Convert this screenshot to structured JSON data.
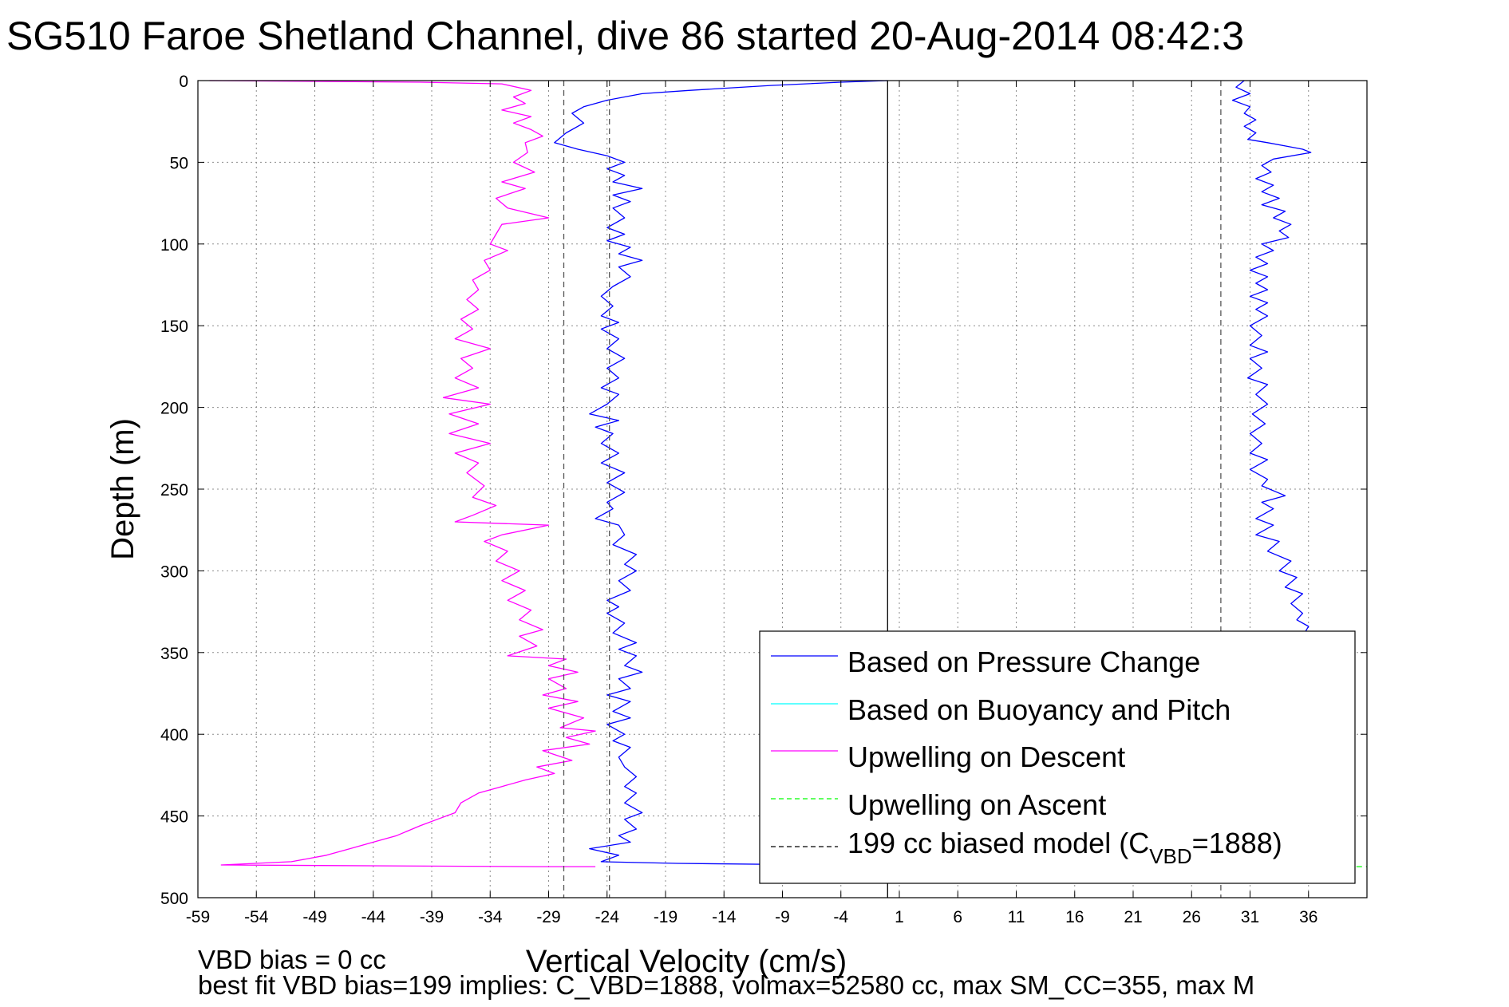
{
  "chart_data": {
    "type": "line",
    "title": "SG510 Faroe Shetland Channel, dive 86 started 20-Aug-2014 08:42:3",
    "xlabel": "Vertical Velocity (cm/s)",
    "ylabel": "Depth (m)",
    "xlim": [
      -59,
      41
    ],
    "ylim": [
      500,
      0
    ],
    "y_reversed": true,
    "grid": true,
    "x_ticks": [
      -59,
      -54,
      -49,
      -44,
      -39,
      -34,
      -29,
      -24,
      -19,
      -14,
      -9,
      -4,
      1,
      6,
      11,
      16,
      21,
      26,
      31,
      36
    ],
    "y_ticks": [
      0,
      50,
      100,
      150,
      200,
      250,
      300,
      350,
      400,
      450,
      500
    ],
    "legend_position": "bottom-right",
    "legend": [
      {
        "label": "Based on Pressure Change",
        "color": "#0000ff",
        "style": "solid"
      },
      {
        "label": "Based on Buoyancy and Pitch",
        "color": "#00ffff",
        "style": "solid"
      },
      {
        "label": "Upwelling on Descent",
        "color": "#ff00ff",
        "style": "solid"
      },
      {
        "label": "Upwelling on Ascent",
        "color": "#00ff00",
        "style": "dashed"
      },
      {
        "label_main": "199 cc biased model (C",
        "label_sub": "VBD",
        "label_tail": "=1888)",
        "color": "#000000",
        "style": "dashed"
      }
    ],
    "series": [
      {
        "color": "#ff00ff",
        "style": "solid",
        "points": [
          [
            -58,
            0
          ],
          [
            -40,
            1
          ],
          [
            -33,
            2
          ],
          [
            -30.5,
            6
          ],
          [
            -32,
            10
          ],
          [
            -31,
            14
          ],
          [
            -33,
            18
          ],
          [
            -30.5,
            22
          ],
          [
            -32,
            26
          ],
          [
            -30.5,
            30
          ],
          [
            -29.5,
            34
          ],
          [
            -31,
            38
          ],
          [
            -30.8,
            44
          ],
          [
            -32,
            50
          ],
          [
            -30.2,
            56
          ],
          [
            -33,
            62
          ],
          [
            -31,
            66
          ],
          [
            -33.5,
            72
          ],
          [
            -32.5,
            78
          ],
          [
            -29,
            84
          ],
          [
            -33,
            88
          ],
          [
            -33.5,
            94
          ],
          [
            -34,
            100
          ],
          [
            -32.5,
            104
          ],
          [
            -34.5,
            110
          ],
          [
            -34,
            116
          ],
          [
            -35.5,
            122
          ],
          [
            -35,
            128
          ],
          [
            -36,
            134
          ],
          [
            -35,
            140
          ],
          [
            -36.5,
            146
          ],
          [
            -35.5,
            152
          ],
          [
            -37,
            158
          ],
          [
            -34,
            164
          ],
          [
            -36.5,
            170
          ],
          [
            -35.5,
            176
          ],
          [
            -37,
            182
          ],
          [
            -35,
            188
          ],
          [
            -38,
            194
          ],
          [
            -34,
            198
          ],
          [
            -37.5,
            204
          ],
          [
            -35,
            210
          ],
          [
            -37.5,
            216
          ],
          [
            -34,
            222
          ],
          [
            -37,
            228
          ],
          [
            -35,
            234
          ],
          [
            -36,
            240
          ],
          [
            -34.5,
            248
          ],
          [
            -35.5,
            255
          ],
          [
            -33.5,
            260
          ],
          [
            -35.5,
            266
          ],
          [
            -37,
            270
          ],
          [
            -29,
            272
          ],
          [
            -33,
            278
          ],
          [
            -34.5,
            282
          ],
          [
            -32.5,
            288
          ],
          [
            -33.5,
            294
          ],
          [
            -31.5,
            300
          ],
          [
            -33,
            306
          ],
          [
            -31,
            312
          ],
          [
            -32.5,
            318
          ],
          [
            -30.5,
            324
          ],
          [
            -31.5,
            330
          ],
          [
            -29.5,
            336
          ],
          [
            -31.5,
            340
          ],
          [
            -30,
            346
          ],
          [
            -32.5,
            352
          ],
          [
            -27.5,
            354
          ],
          [
            -29,
            358
          ],
          [
            -26.5,
            362
          ],
          [
            -29,
            366
          ],
          [
            -27.5,
            372
          ],
          [
            -29.5,
            376
          ],
          [
            -26.5,
            380
          ],
          [
            -29,
            384
          ],
          [
            -26,
            390
          ],
          [
            -28,
            396
          ],
          [
            -25,
            398
          ],
          [
            -27.5,
            402
          ],
          [
            -25.5,
            406
          ],
          [
            -29.5,
            410
          ],
          [
            -27,
            416
          ],
          [
            -30,
            420
          ],
          [
            -28.5,
            424
          ],
          [
            -31,
            428
          ],
          [
            -33,
            432
          ],
          [
            -35,
            436
          ],
          [
            -36.5,
            442
          ],
          [
            -37,
            448
          ],
          [
            -38.5,
            452
          ],
          [
            -40,
            456
          ],
          [
            -42,
            462
          ],
          [
            -44,
            466
          ],
          [
            -46,
            470
          ],
          [
            -48,
            474
          ],
          [
            -51,
            478
          ],
          [
            -57,
            480
          ],
          [
            -30,
            481
          ],
          [
            -25,
            481
          ]
        ]
      },
      {
        "color": "#0000ff",
        "style": "solid",
        "points": [
          [
            0,
            0
          ],
          [
            -4,
            1
          ],
          [
            -10,
            3
          ],
          [
            -17,
            6
          ],
          [
            -21,
            8
          ],
          [
            -24,
            12
          ],
          [
            -26,
            16
          ],
          [
            -27,
            20
          ],
          [
            -26,
            26
          ],
          [
            -27.5,
            32
          ],
          [
            -28.5,
            38
          ],
          [
            -26.5,
            42
          ],
          [
            -24,
            46
          ],
          [
            -22.5,
            50
          ],
          [
            -24,
            54
          ],
          [
            -22.5,
            58
          ],
          [
            -23.5,
            62
          ],
          [
            -21,
            66
          ],
          [
            -23.5,
            70
          ],
          [
            -22,
            74
          ],
          [
            -23.5,
            78
          ],
          [
            -22.5,
            84
          ],
          [
            -24,
            90
          ],
          [
            -22.5,
            94
          ],
          [
            -24,
            98
          ],
          [
            -22,
            102
          ],
          [
            -23,
            106
          ],
          [
            -21,
            110
          ],
          [
            -23,
            114
          ],
          [
            -22,
            120
          ],
          [
            -23.5,
            126
          ],
          [
            -24.5,
            132
          ],
          [
            -23.5,
            138
          ],
          [
            -24.5,
            144
          ],
          [
            -23,
            148
          ],
          [
            -24.5,
            152
          ],
          [
            -23,
            158
          ],
          [
            -24,
            164
          ],
          [
            -22.5,
            170
          ],
          [
            -24,
            176
          ],
          [
            -23,
            182
          ],
          [
            -24.5,
            188
          ],
          [
            -23,
            192
          ],
          [
            -24,
            198
          ],
          [
            -25.5,
            204
          ],
          [
            -23,
            208
          ],
          [
            -25,
            212
          ],
          [
            -23.5,
            216
          ],
          [
            -24.5,
            222
          ],
          [
            -23,
            228
          ],
          [
            -24.5,
            234
          ],
          [
            -22.5,
            240
          ],
          [
            -24,
            246
          ],
          [
            -22.5,
            252
          ],
          [
            -24,
            258
          ],
          [
            -23.5,
            262
          ],
          [
            -25,
            268
          ],
          [
            -23,
            272
          ],
          [
            -22.5,
            278
          ],
          [
            -23.5,
            284
          ],
          [
            -21.5,
            290
          ],
          [
            -22.5,
            296
          ],
          [
            -21.5,
            300
          ],
          [
            -23,
            306
          ],
          [
            -22,
            312
          ],
          [
            -24,
            318
          ],
          [
            -23,
            322
          ],
          [
            -24,
            326
          ],
          [
            -22.5,
            332
          ],
          [
            -23.5,
            338
          ],
          [
            -21.5,
            344
          ],
          [
            -23,
            348
          ],
          [
            -21.5,
            352
          ],
          [
            -22.5,
            358
          ],
          [
            -21,
            362
          ],
          [
            -23,
            366
          ],
          [
            -22,
            372
          ],
          [
            -24,
            376
          ],
          [
            -22,
            380
          ],
          [
            -23.5,
            386
          ],
          [
            -22,
            390
          ],
          [
            -24,
            394
          ],
          [
            -22.5,
            400
          ],
          [
            -23.5,
            404
          ],
          [
            -22,
            408
          ],
          [
            -23,
            414
          ],
          [
            -22.5,
            420
          ],
          [
            -21.5,
            426
          ],
          [
            -22.5,
            432
          ],
          [
            -21.5,
            436
          ],
          [
            -22.5,
            442
          ],
          [
            -21,
            448
          ],
          [
            -22.5,
            452
          ],
          [
            -21.5,
            458
          ],
          [
            -23,
            462
          ],
          [
            -22,
            466
          ],
          [
            -25.5,
            470
          ],
          [
            -23,
            474
          ],
          [
            -24.5,
            478
          ],
          [
            -18,
            479
          ],
          [
            -5,
            480
          ],
          [
            20,
            481
          ],
          [
            30,
            481
          ]
        ]
      },
      {
        "color": "#0000ff",
        "style": "solid",
        "points": [
          [
            30.5,
            0
          ],
          [
            29.8,
            4
          ],
          [
            31,
            8
          ],
          [
            29.5,
            12
          ],
          [
            31,
            16
          ],
          [
            30.5,
            20
          ],
          [
            31.5,
            24
          ],
          [
            30.5,
            28
          ],
          [
            31.5,
            32
          ],
          [
            30.8,
            36
          ],
          [
            32.5,
            38
          ],
          [
            34,
            40
          ],
          [
            35.5,
            42
          ],
          [
            36.2,
            44
          ],
          [
            33,
            48
          ],
          [
            32,
            52
          ],
          [
            32.8,
            56
          ],
          [
            31.5,
            60
          ],
          [
            33,
            64
          ],
          [
            32,
            68
          ],
          [
            33.5,
            72
          ],
          [
            32,
            76
          ],
          [
            34,
            80
          ],
          [
            33,
            84
          ],
          [
            34.5,
            88
          ],
          [
            33.5,
            92
          ],
          [
            34.3,
            96
          ],
          [
            32,
            100
          ],
          [
            33,
            104
          ],
          [
            31.5,
            108
          ],
          [
            32.5,
            112
          ],
          [
            31,
            116
          ],
          [
            32.5,
            120
          ],
          [
            31.5,
            124
          ],
          [
            32.5,
            128
          ],
          [
            31,
            132
          ],
          [
            32.5,
            136
          ],
          [
            31.5,
            140
          ],
          [
            32.5,
            144
          ],
          [
            31,
            150
          ],
          [
            32,
            156
          ],
          [
            31,
            162
          ],
          [
            32.5,
            166
          ],
          [
            31,
            170
          ],
          [
            32,
            176
          ],
          [
            30.8,
            182
          ],
          [
            32.5,
            186
          ],
          [
            31.5,
            192
          ],
          [
            32.5,
            198
          ],
          [
            31.2,
            204
          ],
          [
            32.3,
            210
          ],
          [
            31,
            216
          ],
          [
            32,
            222
          ],
          [
            31,
            228
          ],
          [
            32.5,
            232
          ],
          [
            31,
            238
          ],
          [
            32.5,
            244
          ],
          [
            32,
            248
          ],
          [
            34,
            254
          ],
          [
            32,
            258
          ],
          [
            33,
            262
          ],
          [
            31.5,
            268
          ],
          [
            33,
            272
          ],
          [
            31.5,
            278
          ],
          [
            33.5,
            282
          ],
          [
            32.5,
            288
          ],
          [
            34.5,
            294
          ],
          [
            33.5,
            300
          ],
          [
            35,
            304
          ],
          [
            34,
            310
          ],
          [
            35.5,
            314
          ],
          [
            34.5,
            320
          ],
          [
            35.5,
            326
          ],
          [
            35,
            330
          ],
          [
            36,
            334
          ],
          [
            35.5,
            340
          ],
          [
            36.2,
            346
          ]
        ]
      },
      {
        "color": "#00ff00",
        "style": "dashed",
        "points": [
          [
            36,
            481
          ],
          [
            41,
            481
          ]
        ]
      },
      {
        "color": "#555555",
        "style": "dashed",
        "points": [
          [
            -27.7,
            0
          ],
          [
            -27.7,
            500
          ]
        ]
      },
      {
        "color": "#555555",
        "style": "dashed",
        "points": [
          [
            -23.8,
            0
          ],
          [
            -23.8,
            500
          ]
        ]
      },
      {
        "color": "#555555",
        "style": "dashed",
        "points": [
          [
            28.5,
            0
          ],
          [
            28.5,
            500
          ]
        ]
      },
      {
        "color": "#000000",
        "style": "solid",
        "points": [
          [
            0,
            0
          ],
          [
            0,
            500
          ]
        ]
      }
    ],
    "annotations": [
      "VBD bias = 0 cc",
      "best fit VBD bias=199 implies: C_VBD=1888, volmax=52580 cc, max SM_CC=355, max M"
    ]
  }
}
